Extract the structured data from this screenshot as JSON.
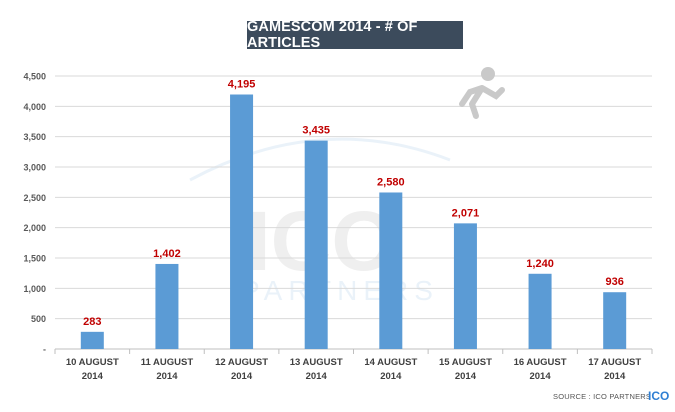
{
  "title": "GAMESCOM 2014 - # OF ARTICLES",
  "source": "SOURCE : ICO PARTNERS",
  "logo": {
    "text": "ICO",
    "icon": "runner-icon"
  },
  "watermark": {
    "main": "ICO",
    "sub": "PARTNERS"
  },
  "colors": {
    "bar": "#5b9bd5",
    "label": "#c00000",
    "title_bg": "#3c4b5c",
    "grid": "#d9d9d9"
  },
  "chart_data": {
    "type": "bar",
    "title": "GAMESCOM 2014 - # OF ARTICLES",
    "categories": [
      [
        "10 AUGUST",
        "2014"
      ],
      [
        "11 AUGUST",
        "2014"
      ],
      [
        "12 AUGUST",
        "2014"
      ],
      [
        "13 AUGUST",
        "2014"
      ],
      [
        "14 AUGUST",
        "2014"
      ],
      [
        "15 AUGUST",
        "2014"
      ],
      [
        "16 AUGUST",
        "2014"
      ],
      [
        "17 AUGUST",
        "2014"
      ]
    ],
    "values": [
      283,
      1402,
      4195,
      3435,
      2580,
      2071,
      1240,
      936
    ],
    "value_labels": [
      "283",
      "1,402",
      "4,195",
      "3,435",
      "2,580",
      "2,071",
      "1,240",
      "936"
    ],
    "y_ticks": [
      {
        "value": 0,
        "label": "-"
      },
      {
        "value": 500,
        "label": "500"
      },
      {
        "value": 1000,
        "label": "1,000"
      },
      {
        "value": 1500,
        "label": "1,500"
      },
      {
        "value": 2000,
        "label": "2,000"
      },
      {
        "value": 2500,
        "label": "2,500"
      },
      {
        "value": 3000,
        "label": "3,000"
      },
      {
        "value": 3500,
        "label": "3,500"
      },
      {
        "value": 4000,
        "label": "4,000"
      },
      {
        "value": 4500,
        "label": "4,500"
      }
    ],
    "ylim": [
      0,
      4500
    ],
    "grid": true,
    "legend": "none",
    "xlabel": "",
    "ylabel": ""
  }
}
